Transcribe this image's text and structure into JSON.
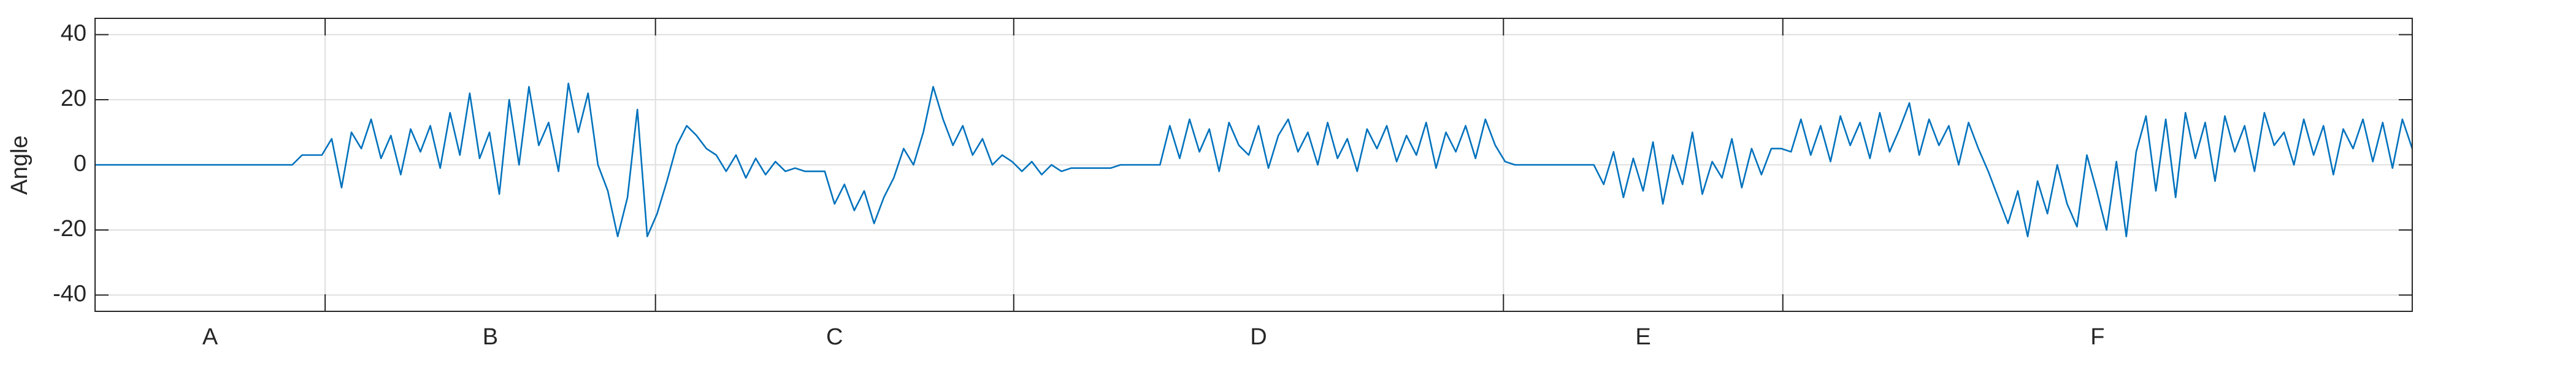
{
  "chart_data": {
    "type": "line",
    "y_label": "Angle",
    "color": "#0072bd",
    "grid": true,
    "categories": [
      "A",
      "B",
      "C",
      "D",
      "E",
      "F"
    ],
    "xlim": [
      0,
      1410
    ],
    "xticks": [
      140,
      341,
      559,
      857,
      1027
    ],
    "ylim": [
      -45,
      45
    ],
    "yticks": [
      -40,
      -20,
      0,
      20,
      40
    ],
    "x": [
      0,
      6,
      12,
      18,
      24,
      30,
      36,
      42,
      48,
      54,
      60,
      66,
      72,
      78,
      84,
      90,
      96,
      102,
      108,
      114,
      120,
      126,
      132,
      138,
      144,
      150,
      156,
      162,
      168,
      174,
      180,
      186,
      192,
      198,
      204,
      210,
      216,
      222,
      228,
      234,
      240,
      246,
      252,
      258,
      264,
      270,
      276,
      282,
      288,
      294,
      300,
      306,
      312,
      318,
      324,
      330,
      336,
      342,
      348,
      354,
      360,
      366,
      372,
      378,
      384,
      390,
      396,
      402,
      408,
      414,
      420,
      426,
      432,
      438,
      444,
      450,
      456,
      462,
      468,
      474,
      480,
      486,
      492,
      498,
      504,
      510,
      516,
      522,
      528,
      534,
      540,
      546,
      552,
      558,
      564,
      570,
      576,
      582,
      588,
      594,
      600,
      606,
      612,
      618,
      624,
      630,
      636,
      642,
      648,
      654,
      660,
      666,
      672,
      678,
      684,
      690,
      696,
      702,
      708,
      714,
      720,
      726,
      732,
      738,
      744,
      750,
      756,
      762,
      768,
      774,
      780,
      786,
      792,
      798,
      804,
      810,
      816,
      822,
      828,
      834,
      840,
      846,
      852,
      858,
      864,
      870,
      876,
      882,
      888,
      894,
      900,
      906,
      912,
      918,
      924,
      930,
      936,
      942,
      948,
      954,
      960,
      966,
      972,
      978,
      984,
      990,
      996,
      1002,
      1008,
      1014,
      1020,
      1026,
      1032,
      1038,
      1044,
      1050,
      1056,
      1062,
      1068,
      1074,
      1080,
      1086,
      1092,
      1098,
      1104,
      1110,
      1116,
      1122,
      1128,
      1134,
      1140,
      1146,
      1152,
      1158,
      1164,
      1170,
      1176,
      1182,
      1188,
      1194,
      1200,
      1206,
      1212,
      1218,
      1224,
      1230,
      1236,
      1242,
      1248,
      1254,
      1260,
      1266,
      1272,
      1278,
      1284,
      1290,
      1296,
      1302,
      1308,
      1314,
      1320,
      1326,
      1332,
      1338,
      1344,
      1350,
      1356,
      1362,
      1368,
      1374,
      1380,
      1386,
      1392,
      1398,
      1404,
      1410
    ],
    "values": [
      0,
      0,
      0,
      0,
      0,
      0,
      0,
      0,
      0,
      0,
      0,
      0,
      0,
      0,
      0,
      0,
      0,
      0,
      0,
      0,
      0,
      3,
      3,
      3,
      8,
      -7,
      10,
      5,
      14,
      2,
      9,
      -3,
      11,
      4,
      12,
      -1,
      16,
      3,
      22,
      2,
      10,
      -9,
      20,
      0,
      24,
      6,
      13,
      -2,
      25,
      10,
      22,
      0,
      -8,
      -22,
      -10,
      17,
      -22,
      -15,
      -5,
      6,
      12,
      9,
      5,
      3,
      -2,
      3,
      -4,
      2,
      -3,
      1,
      -2,
      -1,
      -2,
      -2,
      -2,
      -12,
      -6,
      -14,
      -8,
      -18,
      -10,
      -4,
      5,
      0,
      10,
      24,
      14,
      6,
      12,
      3,
      8,
      0,
      3,
      1,
      -2,
      1,
      -3,
      0,
      -2,
      -1,
      -1,
      -1,
      -1,
      -1,
      0,
      0,
      0,
      0,
      0,
      12,
      2,
      14,
      4,
      11,
      -2,
      13,
      6,
      3,
      12,
      -1,
      9,
      14,
      4,
      10,
      0,
      13,
      2,
      8,
      -2,
      11,
      5,
      12,
      1,
      9,
      3,
      13,
      -1,
      10,
      4,
      12,
      2,
      14,
      6,
      1,
      0,
      0,
      0,
      0,
      0,
      0,
      0,
      0,
      0,
      -6,
      4,
      -10,
      2,
      -8,
      7,
      -12,
      3,
      -6,
      10,
      -9,
      1,
      -4,
      8,
      -7,
      5,
      -3,
      5,
      5,
      4,
      14,
      3,
      12,
      1,
      15,
      6,
      13,
      2,
      16,
      4,
      11,
      19,
      3,
      14,
      6,
      12,
      0,
      13,
      5,
      -2,
      -10,
      -18,
      -8,
      -22,
      -5,
      -15,
      0,
      -12,
      -19,
      3,
      -8,
      -20,
      1,
      -22,
      4,
      15,
      -8,
      14,
      -10,
      16,
      2,
      13,
      -5,
      15,
      4,
      12,
      -2,
      16,
      6,
      10,
      0,
      14,
      3,
      12,
      -3,
      11,
      5,
      14,
      1,
      13,
      -1,
      14,
      5
    ]
  }
}
